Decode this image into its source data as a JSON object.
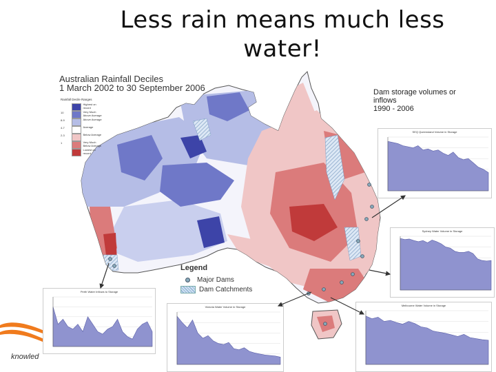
{
  "slide": {
    "title": "Less rain means much less water!",
    "logo_text": "knowled"
  },
  "map": {
    "title_line1": "Australian Rainfall Deciles",
    "title_line2": "1 March 2002 to 30 September 2006",
    "decile_legend": {
      "heading": "Rainfall Decile Ranges",
      "rows": [
        {
          "num": "",
          "label": "Highest on record",
          "color": "#3d44a8"
        },
        {
          "num": "10",
          "label": "Very Much Above Average",
          "color": "#6f78c8"
        },
        {
          "num": "8-9",
          "label": "Above Average",
          "color": "#b5bde6"
        },
        {
          "num": "4-7",
          "label": "Average",
          "color": "#ffffff"
        },
        {
          "num": "2-3",
          "label": "Below Average",
          "color": "#f0c6c6"
        },
        {
          "num": "1",
          "label": "Very Much Below Average",
          "color": "#db7b7b"
        },
        {
          "num": "",
          "label": "Lowest on record",
          "color": "#c03a3a"
        }
      ]
    },
    "legend": {
      "title": "Legend",
      "major_dams": "Major Dams",
      "dam_catchments": "Dam Catchments"
    }
  },
  "dam_panel": {
    "title_line1": "Dam storage volumes or inflows",
    "title_line2": "1990 - 2006"
  },
  "charts": [
    {
      "id": "seq",
      "title": "SEQ Queensland Volume in Storage",
      "values": [
        92,
        90,
        88,
        84,
        82,
        80,
        84,
        76,
        78,
        74,
        76,
        70,
        66,
        72,
        62,
        58,
        60,
        52,
        44,
        40,
        34
      ]
    },
    {
      "id": "sydney",
      "title": "Sydney Water Volume in Storage",
      "values": [
        96,
        94,
        95,
        92,
        90,
        92,
        88,
        93,
        90,
        86,
        80,
        78,
        72,
        70,
        70,
        72,
        68,
        58,
        55,
        54,
        55
      ]
    },
    {
      "id": "perth",
      "title": "Perth Water Inflows to Storage",
      "values": [
        80,
        45,
        55,
        40,
        35,
        45,
        30,
        60,
        45,
        30,
        25,
        35,
        40,
        55,
        30,
        20,
        15,
        35,
        45,
        50,
        30
      ]
    },
    {
      "id": "victoria",
      "title": "Victoria Water Volume in Storage",
      "values": [
        92,
        80,
        70,
        85,
        60,
        50,
        55,
        45,
        40,
        38,
        42,
        30,
        28,
        32,
        25,
        22,
        20,
        18,
        17,
        16,
        14
      ]
    },
    {
      "id": "melbourne",
      "title": "Melbourne Water Volume in Storage",
      "values": [
        90,
        85,
        88,
        80,
        82,
        78,
        75,
        80,
        76,
        70,
        68,
        62,
        60,
        58,
        55,
        52,
        56,
        50,
        48,
        46,
        45
      ]
    }
  ]
}
